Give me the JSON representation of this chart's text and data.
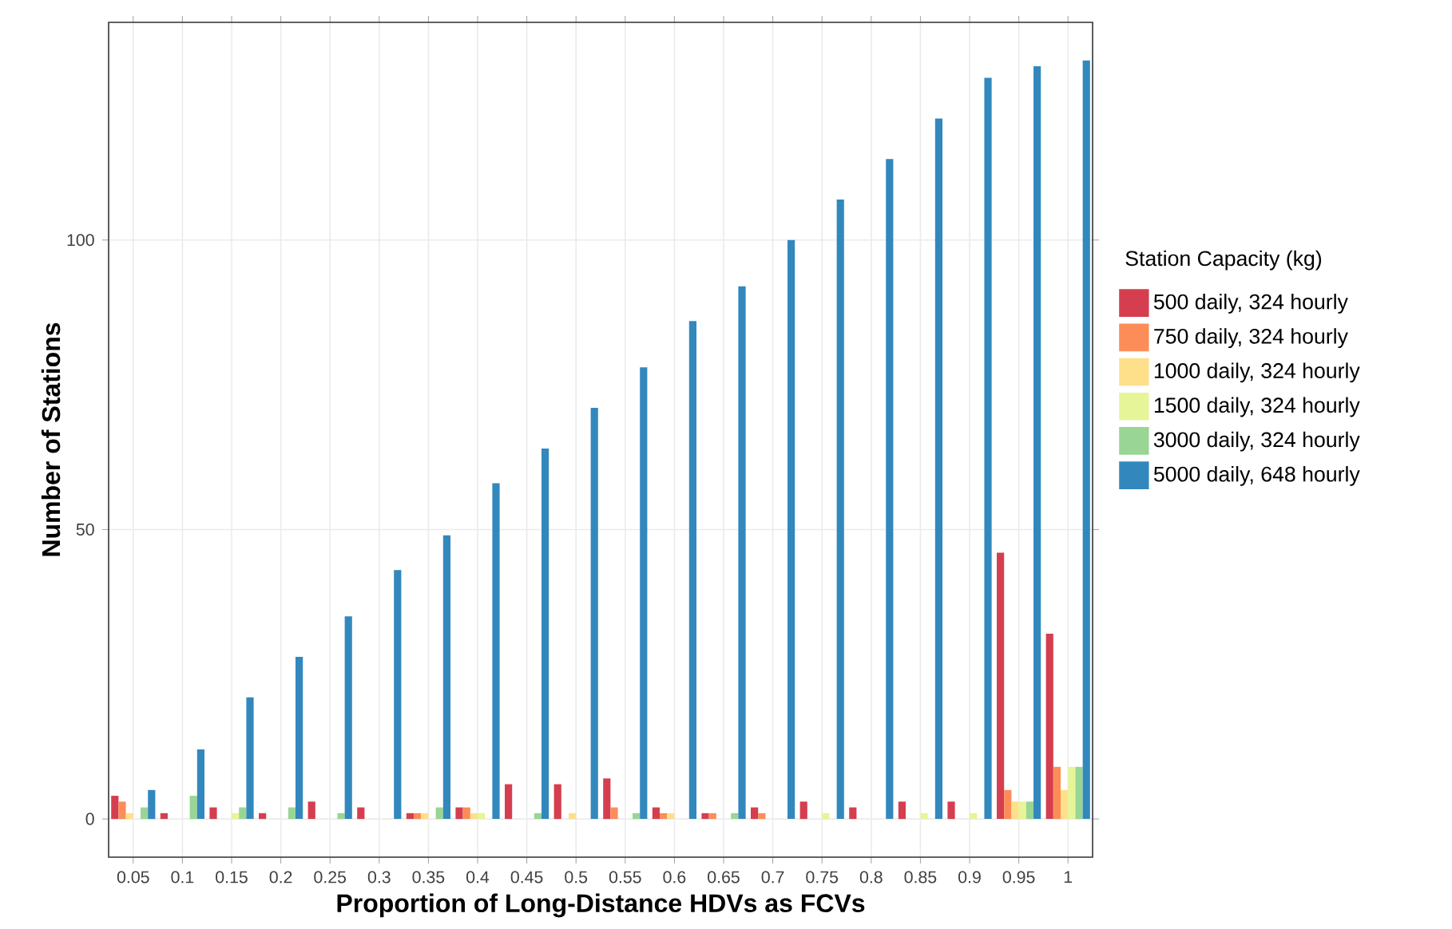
{
  "chart_data": {
    "type": "bar",
    "xlabel": "Proportion of Long-Distance HDVs as FCVs",
    "ylabel": "Number of Stations",
    "legend_title": "Station Capacity (kg)",
    "categories": [
      "0.05",
      "0.1",
      "0.15",
      "0.2",
      "0.25",
      "0.3",
      "0.35",
      "0.4",
      "0.45",
      "0.5",
      "0.55",
      "0.6",
      "0.65",
      "0.7",
      "0.75",
      "0.8",
      "0.85",
      "0.9",
      "0.95",
      "1"
    ],
    "series": [
      {
        "name": "500 daily, 324 hourly",
        "color": "#d53e4f",
        "values": [
          4,
          1,
          2,
          1,
          3,
          2,
          1,
          2,
          6,
          6,
          7,
          2,
          1,
          2,
          3,
          2,
          3,
          3,
          46,
          32
        ]
      },
      {
        "name": "750 daily, 324 hourly",
        "color": "#fc8d59",
        "values": [
          3,
          0,
          0,
          0,
          0,
          0,
          1,
          2,
          0,
          0,
          2,
          1,
          1,
          1,
          0,
          0,
          0,
          0,
          5,
          9
        ]
      },
      {
        "name": "1000 daily, 324 hourly",
        "color": "#fee08b",
        "values": [
          1,
          0,
          0,
          0,
          0,
          0,
          1,
          1,
          0,
          1,
          0,
          1,
          0,
          0,
          0,
          0,
          0,
          0,
          3,
          5
        ]
      },
      {
        "name": "1500 daily, 324 hourly",
        "color": "#e6f598",
        "values": [
          0,
          0,
          1,
          0,
          0,
          0,
          0,
          1,
          0,
          0,
          0,
          0,
          0,
          0,
          1,
          0,
          1,
          1,
          3,
          9
        ]
      },
      {
        "name": "3000 daily, 324 hourly",
        "color": "#99d594",
        "values": [
          2,
          4,
          2,
          2,
          1,
          0,
          2,
          0,
          1,
          0,
          1,
          0,
          1,
          0,
          0,
          0,
          0,
          0,
          3,
          9
        ]
      },
      {
        "name": "5000 daily, 648 hourly",
        "color": "#3288bd",
        "values": [
          5,
          12,
          21,
          28,
          35,
          43,
          49,
          58,
          64,
          71,
          78,
          86,
          92,
          100,
          107,
          114,
          121,
          128,
          130,
          131
        ]
      }
    ],
    "ylim": [
      -6.6,
      137.6
    ],
    "yticks": [
      0,
      50,
      100
    ],
    "grid": true,
    "legend": "right"
  }
}
